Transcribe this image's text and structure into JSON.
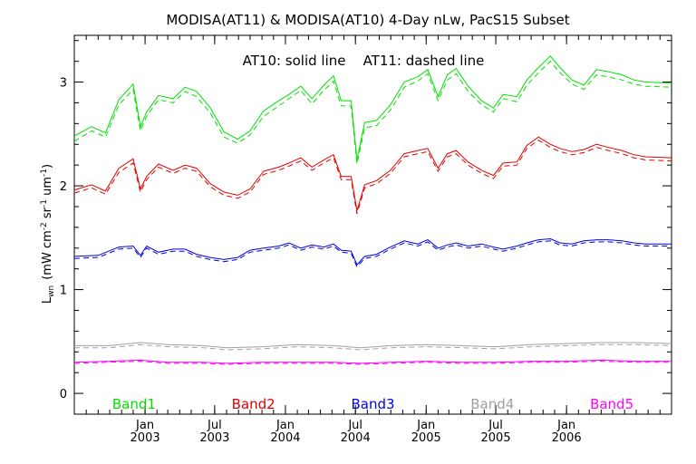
{
  "chart_data": {
    "type": "line",
    "title": "MODISA(AT11) & MODISA(AT10) 4-Day nLw, PacS15 Subset",
    "ylabel": "L",
    "ylabel_sub": "wn",
    "ylabel_units": "(mW cm",
    "ylabel_sup1": "-2",
    "ylabel_mid1": " sr",
    "ylabel_sup2": "-1",
    "ylabel_mid2": " um",
    "ylabel_sup3": "-1",
    "ylabel_end": ")",
    "annotation": "AT10: solid line    AT11: dashed line",
    "ylim": [
      -0.2,
      3.45
    ],
    "yticks": [
      0,
      1,
      2,
      3
    ],
    "xlim": [
      "2002-07-01",
      "2006-10-01"
    ],
    "xticks": [
      {
        "month": "Jan",
        "year": "2003",
        "date": "2003-01-01"
      },
      {
        "month": "Jul",
        "year": "2003",
        "date": "2003-07-01"
      },
      {
        "month": "Jan",
        "year": "2004",
        "date": "2004-01-01"
      },
      {
        "month": "Jul",
        "year": "2004",
        "date": "2004-07-01"
      },
      {
        "month": "Jan",
        "year": "2005",
        "date": "2005-01-01"
      },
      {
        "month": "Jul",
        "year": "2005",
        "date": "2005-07-01"
      },
      {
        "month": "Jan",
        "year": "2006",
        "date": "2006-01-01"
      }
    ],
    "grid": false,
    "legend": "bottom (inline band labels)",
    "series": [
      {
        "name": "Band1",
        "color": "#00e000",
        "x": [
          "2002-07-01",
          "2002-08-15",
          "2002-09-20",
          "2002-10-25",
          "2002-12-01",
          "2002-12-20",
          "2003-01-05",
          "2003-02-05",
          "2003-03-15",
          "2003-04-15",
          "2003-05-15",
          "2003-06-20",
          "2003-07-25",
          "2003-08-30",
          "2003-10-01",
          "2003-11-05",
          "2003-12-15",
          "2004-01-10",
          "2004-02-10",
          "2004-03-10",
          "2004-04-10",
          "2004-05-05",
          "2004-05-25",
          "2004-06-20",
          "2004-07-05",
          "2004-07-25",
          "2004-08-25",
          "2004-09-30",
          "2004-11-05",
          "2004-12-10",
          "2005-01-05",
          "2005-02-01",
          "2005-02-25",
          "2005-03-20",
          "2005-04-20",
          "2005-05-25",
          "2005-06-25",
          "2005-07-20",
          "2005-08-25",
          "2005-09-20",
          "2005-10-20",
          "2005-11-20",
          "2005-12-15",
          "2006-01-15",
          "2006-02-15",
          "2006-03-20",
          "2006-04-20",
          "2006-05-25",
          "2006-06-25",
          "2006-07-25",
          "2006-10-01"
        ],
        "at10": [
          2.48,
          2.57,
          2.51,
          2.83,
          2.98,
          2.57,
          2.71,
          2.87,
          2.84,
          2.95,
          2.91,
          2.75,
          2.52,
          2.45,
          2.53,
          2.72,
          2.82,
          2.88,
          2.96,
          2.84,
          2.97,
          3.06,
          2.82,
          2.82,
          2.25,
          2.61,
          2.63,
          2.78,
          3.0,
          3.05,
          3.12,
          2.86,
          3.07,
          3.13,
          2.96,
          2.82,
          2.75,
          2.88,
          2.86,
          3.02,
          3.14,
          3.25,
          3.14,
          3.02,
          2.97,
          3.12,
          3.1,
          3.07,
          3.02,
          3.0,
          2.99
        ],
        "at11": [
          2.43,
          2.53,
          2.47,
          2.78,
          2.93,
          2.53,
          2.67,
          2.83,
          2.8,
          2.91,
          2.86,
          2.7,
          2.47,
          2.41,
          2.49,
          2.67,
          2.77,
          2.84,
          2.92,
          2.79,
          2.92,
          3.01,
          2.77,
          2.77,
          2.21,
          2.56,
          2.58,
          2.73,
          2.95,
          3.01,
          3.08,
          2.82,
          3.02,
          3.08,
          2.91,
          2.78,
          2.71,
          2.84,
          2.81,
          2.97,
          3.09,
          3.2,
          3.09,
          2.98,
          2.93,
          3.07,
          3.05,
          3.02,
          2.98,
          2.96,
          2.95
        ]
      },
      {
        "name": "Band2",
        "color": "#e00000",
        "x": [
          "2002-07-01",
          "2002-08-15",
          "2002-09-20",
          "2002-10-25",
          "2002-12-01",
          "2002-12-20",
          "2003-01-05",
          "2003-02-05",
          "2003-03-15",
          "2003-04-15",
          "2003-05-15",
          "2003-06-20",
          "2003-07-25",
          "2003-08-30",
          "2003-10-01",
          "2003-11-05",
          "2003-12-15",
          "2004-01-10",
          "2004-02-10",
          "2004-03-10",
          "2004-04-10",
          "2004-05-05",
          "2004-05-25",
          "2004-06-20",
          "2004-07-05",
          "2004-07-25",
          "2004-08-25",
          "2004-09-30",
          "2004-11-05",
          "2004-12-10",
          "2005-01-05",
          "2005-02-01",
          "2005-02-25",
          "2005-03-20",
          "2005-04-20",
          "2005-05-25",
          "2005-06-25",
          "2005-07-20",
          "2005-08-25",
          "2005-09-20",
          "2005-10-20",
          "2005-11-20",
          "2005-12-15",
          "2006-01-15",
          "2006-02-15",
          "2006-03-20",
          "2006-04-20",
          "2006-05-25",
          "2006-06-25",
          "2006-07-25",
          "2006-10-01"
        ],
        "at10": [
          1.96,
          2.01,
          1.95,
          2.17,
          2.26,
          1.97,
          2.09,
          2.21,
          2.15,
          2.2,
          2.17,
          2.02,
          1.94,
          1.91,
          1.97,
          2.14,
          2.18,
          2.22,
          2.27,
          2.18,
          2.25,
          2.3,
          2.09,
          2.09,
          1.76,
          2.01,
          2.05,
          2.15,
          2.31,
          2.34,
          2.36,
          2.17,
          2.31,
          2.34,
          2.23,
          2.15,
          2.1,
          2.22,
          2.23,
          2.39,
          2.47,
          2.4,
          2.36,
          2.33,
          2.35,
          2.4,
          2.37,
          2.34,
          2.3,
          2.28,
          2.27
        ],
        "at11": [
          1.93,
          1.98,
          1.92,
          2.13,
          2.22,
          1.94,
          2.06,
          2.18,
          2.12,
          2.17,
          2.14,
          1.99,
          1.91,
          1.88,
          1.94,
          2.11,
          2.15,
          2.19,
          2.24,
          2.15,
          2.22,
          2.27,
          2.06,
          2.06,
          1.73,
          1.98,
          2.02,
          2.12,
          2.28,
          2.31,
          2.33,
          2.14,
          2.28,
          2.31,
          2.2,
          2.12,
          2.07,
          2.19,
          2.2,
          2.36,
          2.44,
          2.37,
          2.33,
          2.3,
          2.32,
          2.37,
          2.34,
          2.31,
          2.27,
          2.25,
          2.24
        ]
      },
      {
        "name": "Band3",
        "color": "#0000e0",
        "x": [
          "2002-07-01",
          "2002-09-01",
          "2002-10-25",
          "2002-12-01",
          "2002-12-20",
          "2003-01-05",
          "2003-02-05",
          "2003-03-15",
          "2003-04-15",
          "2003-05-15",
          "2003-06-20",
          "2003-07-25",
          "2003-08-30",
          "2003-10-01",
          "2003-11-05",
          "2003-12-15",
          "2004-01-10",
          "2004-02-10",
          "2004-03-10",
          "2004-04-10",
          "2004-05-05",
          "2004-05-25",
          "2004-06-20",
          "2004-07-05",
          "2004-07-25",
          "2004-08-25",
          "2004-09-30",
          "2004-11-05",
          "2004-12-10",
          "2005-01-05",
          "2005-02-01",
          "2005-02-25",
          "2005-03-20",
          "2005-04-20",
          "2005-05-25",
          "2005-06-25",
          "2005-07-20",
          "2005-08-25",
          "2005-09-20",
          "2005-10-20",
          "2005-11-20",
          "2005-12-15",
          "2006-01-15",
          "2006-02-15",
          "2006-03-20",
          "2006-04-20",
          "2006-05-25",
          "2006-06-25",
          "2006-07-25",
          "2006-10-01"
        ],
        "at10": [
          1.32,
          1.33,
          1.41,
          1.42,
          1.33,
          1.42,
          1.36,
          1.39,
          1.39,
          1.34,
          1.31,
          1.29,
          1.31,
          1.38,
          1.4,
          1.42,
          1.45,
          1.4,
          1.43,
          1.41,
          1.44,
          1.38,
          1.37,
          1.24,
          1.32,
          1.34,
          1.41,
          1.47,
          1.44,
          1.48,
          1.4,
          1.43,
          1.45,
          1.42,
          1.44,
          1.41,
          1.39,
          1.42,
          1.45,
          1.48,
          1.49,
          1.45,
          1.44,
          1.47,
          1.48,
          1.48,
          1.47,
          1.45,
          1.44,
          1.44
        ],
        "at11": [
          1.3,
          1.31,
          1.39,
          1.4,
          1.31,
          1.4,
          1.34,
          1.37,
          1.37,
          1.32,
          1.29,
          1.27,
          1.29,
          1.36,
          1.38,
          1.4,
          1.43,
          1.38,
          1.41,
          1.39,
          1.42,
          1.36,
          1.35,
          1.22,
          1.3,
          1.32,
          1.39,
          1.45,
          1.42,
          1.46,
          1.38,
          1.41,
          1.43,
          1.4,
          1.42,
          1.39,
          1.37,
          1.4,
          1.43,
          1.46,
          1.47,
          1.43,
          1.42,
          1.45,
          1.46,
          1.46,
          1.45,
          1.43,
          1.42,
          1.42
        ]
      },
      {
        "name": "Band4",
        "color": "#a0a0a0",
        "x": [
          "2002-07-01",
          "2002-10-01",
          "2002-12-20",
          "2003-03-01",
          "2003-06-01",
          "2003-08-01",
          "2003-11-01",
          "2004-02-01",
          "2004-05-01",
          "2004-07-15",
          "2004-10-01",
          "2005-01-01",
          "2005-04-01",
          "2005-07-01",
          "2005-10-01",
          "2006-01-01",
          "2006-04-01",
          "2006-07-01",
          "2006-10-01"
        ],
        "at10": [
          0.46,
          0.46,
          0.49,
          0.47,
          0.46,
          0.44,
          0.45,
          0.47,
          0.46,
          0.44,
          0.46,
          0.47,
          0.46,
          0.45,
          0.47,
          0.48,
          0.49,
          0.49,
          0.48
        ],
        "at11": [
          0.44,
          0.44,
          0.47,
          0.45,
          0.44,
          0.42,
          0.43,
          0.45,
          0.44,
          0.42,
          0.44,
          0.45,
          0.44,
          0.43,
          0.45,
          0.46,
          0.47,
          0.47,
          0.46
        ]
      },
      {
        "name": "Band5",
        "color": "#ff00ff",
        "x": [
          "2002-07-01",
          "2002-10-01",
          "2002-12-20",
          "2003-03-01",
          "2003-06-01",
          "2003-08-01",
          "2003-11-01",
          "2004-02-01",
          "2004-05-01",
          "2004-07-15",
          "2004-10-01",
          "2005-01-01",
          "2005-04-01",
          "2005-07-01",
          "2005-10-01",
          "2006-01-01",
          "2006-04-01",
          "2006-07-01",
          "2006-10-01"
        ],
        "at10": [
          0.3,
          0.31,
          0.32,
          0.3,
          0.3,
          0.29,
          0.3,
          0.3,
          0.3,
          0.29,
          0.3,
          0.31,
          0.3,
          0.3,
          0.31,
          0.31,
          0.32,
          0.31,
          0.31
        ],
        "at11": [
          0.29,
          0.3,
          0.31,
          0.29,
          0.29,
          0.28,
          0.29,
          0.29,
          0.29,
          0.28,
          0.29,
          0.3,
          0.29,
          0.29,
          0.3,
          0.3,
          0.31,
          0.3,
          0.3
        ]
      }
    ]
  }
}
